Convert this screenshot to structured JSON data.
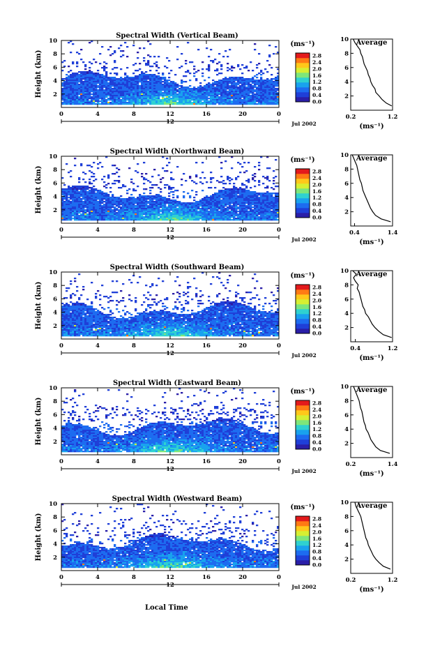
{
  "figure": {
    "xlabel_bottom": "Local Time"
  },
  "colorbar": {
    "unit": "(ms⁻¹)",
    "ticks": [
      "2.8",
      "2.4",
      "2.0",
      "1.6",
      "1.2",
      "0.8",
      "0.4",
      "0.0"
    ],
    "colors": [
      "#2a1ea8",
      "#1f3fd8",
      "#1d6cf0",
      "#19a2ee",
      "#2fd1d0",
      "#7ee67a",
      "#d7ef32",
      "#ffc81a",
      "#ff7a14",
      "#e31a1c"
    ]
  },
  "chart_data": [
    {
      "type": "heatmap",
      "title": "Spectral Width (Vertical Beam)",
      "ylabel": "Height (km)",
      "x_ticks": [
        "0",
        "4",
        "8",
        "12",
        "16",
        "20",
        "0"
      ],
      "x_sub_label": "12",
      "date_label": "Jul 2002",
      "ylim": [
        0,
        10
      ],
      "y_ticks": [
        "2",
        "4",
        "6",
        "8",
        "10"
      ],
      "colorbar_range": [
        0.0,
        2.8
      ],
      "average_profile": {
        "title": "Average",
        "xlabel": "(ms⁻¹)",
        "x_ticks": [
          "0.2",
          "1.2"
        ],
        "xlim": [
          0.2,
          1.2
        ],
        "y_ticks": [
          "2",
          "4",
          "6",
          "8",
          "10"
        ],
        "height": [
          0.6,
          1.0,
          1.5,
          2.0,
          2.5,
          3.0,
          3.5,
          4.0,
          4.5,
          5.0,
          5.5,
          6.0,
          6.5,
          7.0,
          7.5,
          8.0,
          8.5,
          9.0,
          9.5,
          10.0
        ],
        "width": [
          1.18,
          1.05,
          0.95,
          0.88,
          0.8,
          0.78,
          0.72,
          0.68,
          0.66,
          0.62,
          0.6,
          0.56,
          0.52,
          0.5,
          0.48,
          0.44,
          0.42,
          0.36,
          0.3,
          0.26
        ]
      }
    },
    {
      "type": "heatmap",
      "title": "Spectral Width (Northward Beam)",
      "ylabel": "Height (km)",
      "x_ticks": [
        "0",
        "4",
        "8",
        "12",
        "16",
        "20",
        "0"
      ],
      "x_sub_label": "12",
      "date_label": "Jul 2002",
      "ylim": [
        0,
        10
      ],
      "y_ticks": [
        "2",
        "4",
        "6",
        "8",
        "10"
      ],
      "colorbar_range": [
        0.0,
        2.8
      ],
      "average_profile": {
        "title": "Average",
        "xlabel": "(ms⁻¹)",
        "x_ticks": [
          "0.4",
          "1.4"
        ],
        "xlim": [
          0.3,
          1.4
        ],
        "y_ticks": [
          "2",
          "4",
          "6",
          "8",
          "10"
        ],
        "height": [
          0.6,
          1.0,
          1.5,
          2.0,
          2.5,
          3.0,
          3.5,
          4.0,
          4.5,
          5.0,
          5.5,
          6.0,
          6.5,
          7.0,
          7.5,
          8.0,
          8.5,
          9.0,
          9.5,
          10.0
        ],
        "width": [
          1.35,
          1.1,
          0.95,
          0.88,
          0.82,
          0.78,
          0.74,
          0.7,
          0.66,
          0.62,
          0.6,
          0.58,
          0.54,
          0.52,
          0.5,
          0.48,
          0.46,
          0.42,
          0.38,
          0.34
        ]
      }
    },
    {
      "type": "heatmap",
      "title": "Spectral Width (Southward Beam)",
      "ylabel": "Height (km)",
      "x_ticks": [
        "0",
        "4",
        "8",
        "12",
        "16",
        "20",
        "0"
      ],
      "x_sub_label": "12",
      "date_label": "Jul 2002",
      "ylim": [
        0,
        10
      ],
      "y_ticks": [
        "2",
        "4",
        "6",
        "8",
        "10"
      ],
      "colorbar_range": [
        0.0,
        2.8
      ],
      "average_profile": {
        "title": "Average",
        "xlabel": "(ms⁻¹)",
        "x_ticks": [
          "0.4",
          "1.2"
        ],
        "xlim": [
          0.3,
          1.2
        ],
        "y_ticks": [
          "2",
          "4",
          "6",
          "8",
          "10"
        ],
        "height": [
          0.6,
          1.0,
          1.5,
          2.0,
          2.5,
          3.0,
          3.5,
          4.0,
          4.5,
          5.0,
          5.5,
          6.0,
          6.5,
          7.0,
          7.5,
          8.0,
          8.5,
          9.0,
          9.5,
          10.0
        ],
        "width": [
          1.18,
          1.0,
          0.9,
          0.82,
          0.76,
          0.72,
          0.68,
          0.62,
          0.6,
          0.56,
          0.54,
          0.52,
          0.5,
          0.48,
          0.44,
          0.46,
          0.4,
          0.36,
          0.42,
          0.34
        ]
      }
    },
    {
      "type": "heatmap",
      "title": "Spectral Width (Eastward Beam)",
      "ylabel": "Height (km)",
      "x_ticks": [
        "0",
        "4",
        "8",
        "12",
        "16",
        "20",
        "0"
      ],
      "x_sub_label": "12",
      "date_label": "Jul 2002",
      "ylim": [
        0,
        10
      ],
      "y_ticks": [
        "2",
        "4",
        "6",
        "8",
        "10"
      ],
      "colorbar_range": [
        0.0,
        2.8
      ],
      "average_profile": {
        "title": "Average",
        "xlabel": "(ms⁻¹)",
        "x_ticks": [
          "0.2",
          "1.4"
        ],
        "xlim": [
          0.2,
          1.4
        ],
        "y_ticks": [
          "2",
          "4",
          "6",
          "8",
          "10"
        ],
        "height": [
          0.6,
          1.0,
          1.5,
          2.0,
          2.5,
          3.0,
          3.5,
          4.0,
          4.5,
          5.0,
          5.5,
          6.0,
          6.5,
          7.0,
          7.5,
          8.0,
          8.5,
          9.0,
          9.5,
          10.0
        ],
        "width": [
          1.32,
          1.05,
          0.92,
          0.85,
          0.78,
          0.74,
          0.7,
          0.64,
          0.62,
          0.58,
          0.56,
          0.54,
          0.52,
          0.48,
          0.46,
          0.44,
          0.4,
          0.36,
          0.32,
          0.28
        ]
      }
    },
    {
      "type": "heatmap",
      "title": "Spectral Width (Westward Beam)",
      "ylabel": "Height (km)",
      "x_ticks": [
        "0",
        "4",
        "8",
        "12",
        "16",
        "20",
        "0"
      ],
      "x_sub_label": "12",
      "date_label": "Jul 2002",
      "ylim": [
        0,
        10
      ],
      "y_ticks": [
        "2",
        "4",
        "6",
        "8",
        "10"
      ],
      "colorbar_range": [
        0.0,
        2.8
      ],
      "average_profile": {
        "title": "Average",
        "xlabel": "(ms⁻¹)",
        "x_ticks": [
          "0.2",
          "1.2"
        ],
        "xlim": [
          0.2,
          1.2
        ],
        "y_ticks": [
          "2",
          "4",
          "6",
          "8",
          "10"
        ],
        "height": [
          0.6,
          1.0,
          1.5,
          2.0,
          2.5,
          3.0,
          3.5,
          4.0,
          4.5,
          5.0,
          5.5,
          6.0,
          6.5,
          7.0,
          7.5,
          8.0,
          8.5,
          9.0,
          9.5,
          10.0
        ],
        "width": [
          1.15,
          0.98,
          0.88,
          0.8,
          0.74,
          0.7,
          0.66,
          0.62,
          0.6,
          0.56,
          0.54,
          0.52,
          0.5,
          0.48,
          0.46,
          0.44,
          0.4,
          0.36,
          0.32,
          0.3
        ]
      }
    }
  ]
}
